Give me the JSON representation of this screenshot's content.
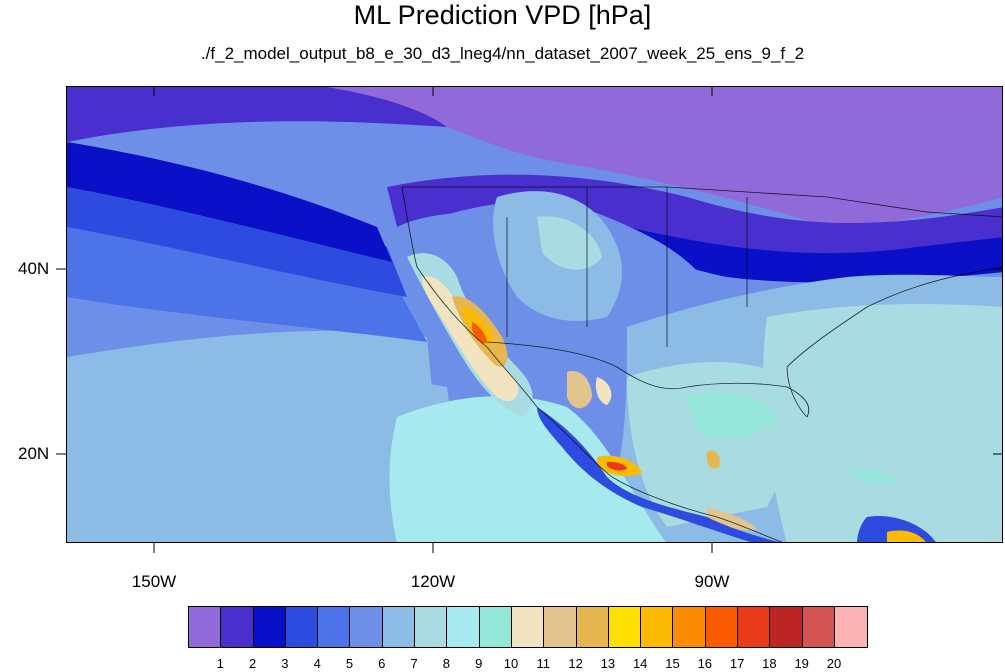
{
  "title": "ML Prediction VPD [hPa]",
  "subtitle": "./f_2_model_output_b8_e_30_d3_lneg4/nn_dataset_2007_week_25_ens_9_f_2",
  "map": {
    "lat_labels": [
      "40N",
      "20N"
    ],
    "lon_labels": [
      "150W",
      "120W",
      "90W"
    ],
    "region": "North America and Eastern Pacific",
    "lon_range": [
      -160,
      -60
    ],
    "lat_range": [
      10,
      59
    ]
  },
  "colorbar": {
    "labels": [
      "1",
      "2",
      "3",
      "4",
      "5",
      "6",
      "7",
      "8",
      "9",
      "10",
      "11",
      "12",
      "13",
      "14",
      "15",
      "16",
      "17",
      "18",
      "19",
      "20"
    ],
    "colors": [
      "#8f6ad8",
      "#4a2fcf",
      "#0a10c8",
      "#2e4be0",
      "#4d73e8",
      "#6e8fe8",
      "#8cbbe6",
      "#a8dbe2",
      "#a6eaf0",
      "#94e6d8",
      "#f2e4c0",
      "#e2c48e",
      "#e6b650",
      "#fde000",
      "#fcbb00",
      "#fb8b00",
      "#fa5a00",
      "#e93a1a",
      "#bb2624",
      "#d45454",
      "#fbb3b3"
    ]
  }
}
